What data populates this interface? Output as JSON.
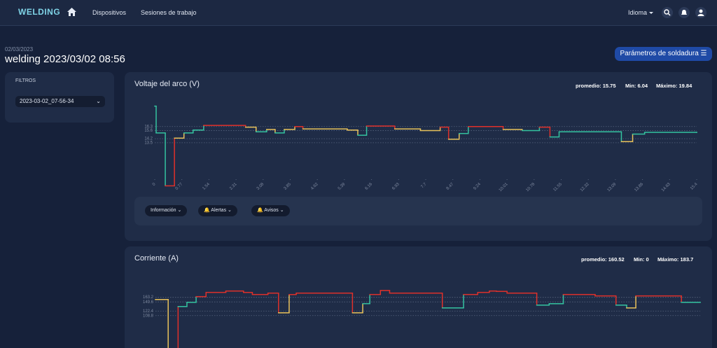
{
  "nav": {
    "logo": "WELDING",
    "links": [
      "Dispositivos",
      "Sesiones de trabajo"
    ],
    "language": "Idioma"
  },
  "header": {
    "date": "02/03/2023",
    "title": "welding 2023/03/02 08:56",
    "button": "Parámetros de soldadura"
  },
  "filters": {
    "title": "FILTROS",
    "session": "2023-03-02_07-56-34"
  },
  "chart_buttons": [
    "Información",
    "Alertas",
    "Avisos"
  ],
  "chart_data": [
    {
      "type": "line",
      "step": true,
      "title": "Voltaje del arco (V)",
      "stats": [
        "promedio: 15.75",
        "Min: 6.04",
        "Máximo: 19.84"
      ],
      "x": [
        0,
        0.04,
        0.3,
        0.56,
        0.83,
        1.09,
        1.39,
        2.58,
        2.88,
        3.18,
        3.42,
        3.68,
        3.98,
        4.21,
        5.47,
        5.77,
        6.02,
        6.82,
        7.55,
        8.11,
        8.35,
        8.65,
        8.91,
        9.9,
        10.44,
        10.93,
        11.23,
        11.49,
        13.26,
        13.58,
        13.92,
        15.4
      ],
      "values": [
        19.84,
        15.2,
        6.04,
        14.3,
        15.2,
        15.7,
        16.5,
        16.2,
        15.4,
        15.8,
        15.2,
        15.8,
        16.3,
        15.9,
        15.7,
        14.8,
        16.4,
        15.9,
        15.6,
        16.2,
        14.1,
        15.1,
        16.3,
        15.8,
        15.6,
        16.2,
        14.5,
        15.4,
        13.7,
        15.0,
        15.3,
        15.3
      ],
      "point_colors": [
        "#34c3a0",
        "#34c3a0",
        "#e0302a",
        "#e8c15a",
        "#34c3a0",
        "#34c3a0",
        "#e0302a",
        "#e8c15a",
        "#34c3a0",
        "#e8c15a",
        "#34c3a0",
        "#e8c15a",
        "#e0302a",
        "#e8c15a",
        "#e8c15a",
        "#34c3a0",
        "#e0302a",
        "#e8c15a",
        "#e8c15a",
        "#e0302a",
        "#e8c15a",
        "#34c3a0",
        "#e0302a",
        "#e8c15a",
        "#34c3a0",
        "#e0302a",
        "#34c3a0",
        "#34c3a0",
        "#e8c15a",
        "#34c3a0",
        "#34c3a0",
        "#34c3a0"
      ],
      "xlim": [
        0,
        15.4
      ],
      "ylim": [
        5,
        21
      ],
      "xticks": [
        0,
        0.77,
        1.54,
        2.31,
        3.08,
        3.85,
        4.62,
        5.39,
        6.16,
        6.93,
        7.7,
        8.47,
        9.24,
        10.01,
        10.78,
        11.55,
        12.32,
        13.09,
        13.86,
        14.63,
        15.4
      ],
      "yticks": [
        16.3,
        15.6,
        14.2,
        13.5
      ],
      "grid": true
    },
    {
      "type": "line",
      "step": true,
      "title": "Corriente (A)",
      "stats": [
        "promedio: 160.52",
        "Min: 0",
        "Máximo: 183.7"
      ],
      "x": [
        0,
        0.36,
        0.64,
        0.89,
        1.15,
        1.43,
        1.99,
        2.49,
        2.74,
        3.18,
        3.48,
        3.78,
        3.98,
        5.57,
        5.86,
        6.06,
        6.36,
        6.62,
        8.11,
        8.71,
        9.11,
        9.44,
        9.64,
        9.94,
        10.78,
        11.13,
        11.53,
        12.43,
        13.02,
        13.32,
        13.58,
        14.87,
        15.4
      ],
      "values": [
        156.9,
        0,
        135.9,
        148.4,
        165.3,
        177.8,
        182,
        177.8,
        171.5,
        175.7,
        117.2,
        171.5,
        175.7,
        117.2,
        144.4,
        171.5,
        183.7,
        175.7,
        131.7,
        171.5,
        177.8,
        182,
        181,
        175.7,
        140.2,
        144.4,
        171.5,
        167.4,
        140.2,
        131.7,
        167.4,
        148.4,
        148.4
      ],
      "point_colors": [
        "#e8c15a",
        "#e0302a",
        "#34c3a0",
        "#34c3a0",
        "#e0302a",
        "#e0302a",
        "#e0302a",
        "#e0302a",
        "#e0302a",
        "#e0302a",
        "#e8c15a",
        "#e0302a",
        "#e0302a",
        "#e8c15a",
        "#34c3a0",
        "#e0302a",
        "#e0302a",
        "#e0302a",
        "#34c3a0",
        "#e0302a",
        "#e0302a",
        "#e0302a",
        "#e0302a",
        "#e0302a",
        "#34c3a0",
        "#34c3a0",
        "#e0302a",
        "#e0302a",
        "#34c3a0",
        "#e8c15a",
        "#e0302a",
        "#34c3a0",
        "#34c3a0"
      ],
      "xlim": [
        0,
        15.4
      ],
      "ylim": [
        0,
        200
      ],
      "yticks": [
        163.2,
        149.6,
        122.4,
        108.8
      ],
      "grid": true
    }
  ]
}
